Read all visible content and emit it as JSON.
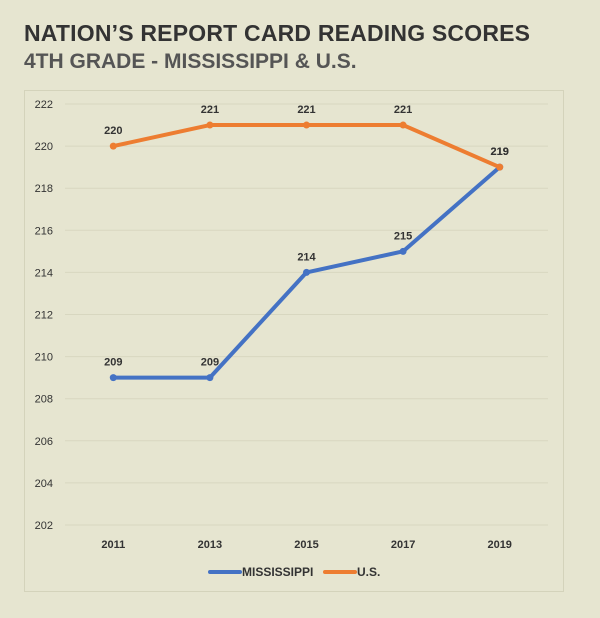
{
  "header": {
    "title": "NATION’S REPORT CARD READING SCORES",
    "subtitle": "4TH GRADE - MISSISSIPPI & U.S."
  },
  "chart_data": {
    "type": "line",
    "title": "NATION’S REPORT CARD READING SCORES",
    "subtitle": "4TH GRADE - MISSISSIPPI & U.S.",
    "categories": [
      "2011",
      "2013",
      "2015",
      "2017",
      "2019"
    ],
    "series": [
      {
        "name": "MISSISSIPPI",
        "color": "#4472c4",
        "values": [
          209,
          209,
          214,
          215,
          219
        ]
      },
      {
        "name": "U.S.",
        "color": "#ed7d31",
        "values": [
          220,
          221,
          221,
          221,
          219
        ]
      }
    ],
    "ylim": [
      202,
      222
    ],
    "yticks": [
      202,
      204,
      206,
      208,
      210,
      212,
      214,
      216,
      218,
      220,
      222
    ],
    "xlabel": "",
    "ylabel": "",
    "grid": true,
    "legend": "bottom-center",
    "gridColor": "#d8d7c0"
  }
}
